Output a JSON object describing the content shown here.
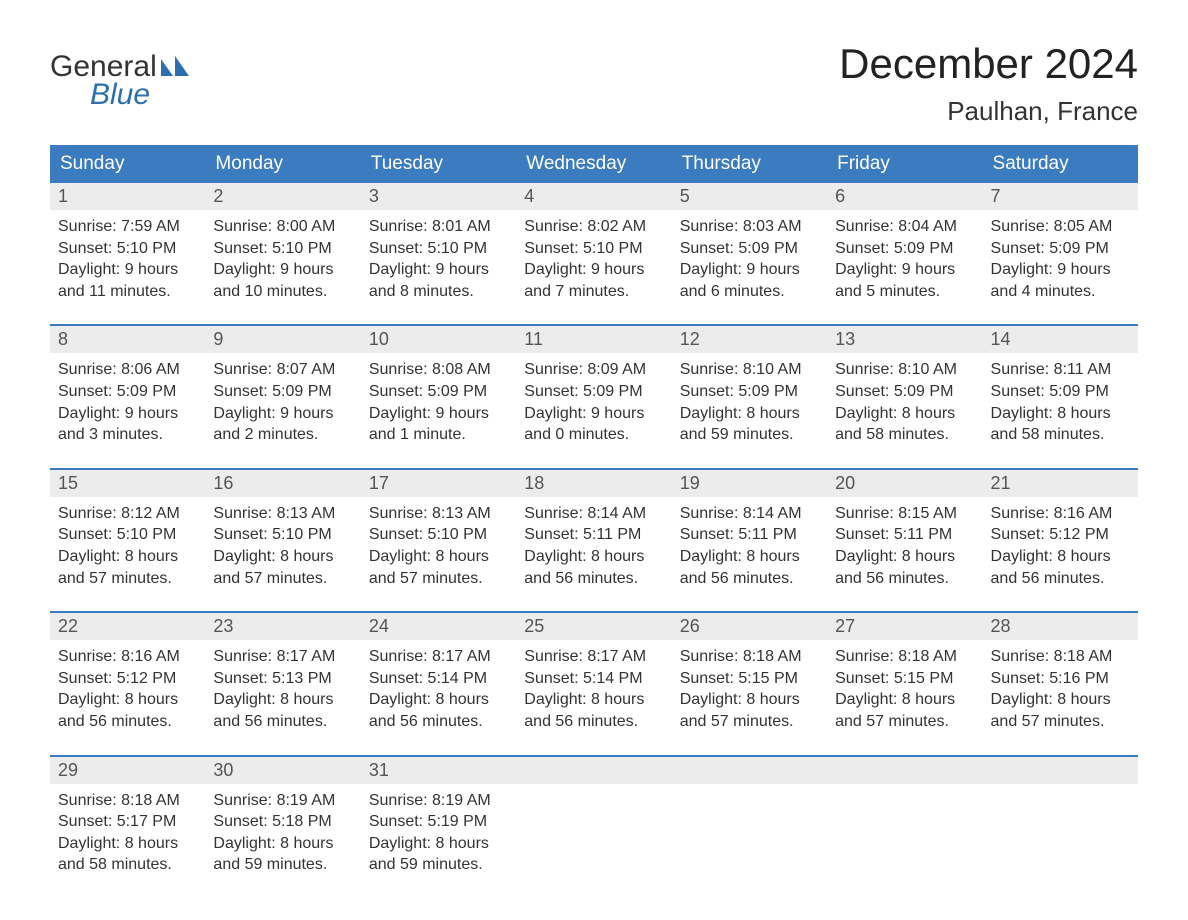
{
  "brand": {
    "top": "General",
    "bottom": "Blue",
    "textColor": "#333333",
    "blueColor": "#2b6fb0"
  },
  "title": "December 2024",
  "location": "Paulhan, France",
  "colors": {
    "headerBg": "#3b7bbf",
    "headerText": "#ffffff",
    "weekBorder": "#3b7bbf",
    "dayNumBg": "#ececec",
    "dayNumText": "#555555",
    "bodyText": "#333333",
    "pageBg": "#ffffff"
  },
  "typography": {
    "titleFontSize": 42,
    "locationFontSize": 26,
    "dayHeaderFontSize": 19,
    "dayNumFontSize": 18,
    "cellFontSize": 16,
    "logoFontSize": 30
  },
  "dayHeaders": [
    "Sunday",
    "Monday",
    "Tuesday",
    "Wednesday",
    "Thursday",
    "Friday",
    "Saturday"
  ],
  "weeks": [
    [
      {
        "num": "1",
        "sunrise": "Sunrise: 7:59 AM",
        "sunset": "Sunset: 5:10 PM",
        "d1": "Daylight: 9 hours",
        "d2": "and 11 minutes."
      },
      {
        "num": "2",
        "sunrise": "Sunrise: 8:00 AM",
        "sunset": "Sunset: 5:10 PM",
        "d1": "Daylight: 9 hours",
        "d2": "and 10 minutes."
      },
      {
        "num": "3",
        "sunrise": "Sunrise: 8:01 AM",
        "sunset": "Sunset: 5:10 PM",
        "d1": "Daylight: 9 hours",
        "d2": "and 8 minutes."
      },
      {
        "num": "4",
        "sunrise": "Sunrise: 8:02 AM",
        "sunset": "Sunset: 5:10 PM",
        "d1": "Daylight: 9 hours",
        "d2": "and 7 minutes."
      },
      {
        "num": "5",
        "sunrise": "Sunrise: 8:03 AM",
        "sunset": "Sunset: 5:09 PM",
        "d1": "Daylight: 9 hours",
        "d2": "and 6 minutes."
      },
      {
        "num": "6",
        "sunrise": "Sunrise: 8:04 AM",
        "sunset": "Sunset: 5:09 PM",
        "d1": "Daylight: 9 hours",
        "d2": "and 5 minutes."
      },
      {
        "num": "7",
        "sunrise": "Sunrise: 8:05 AM",
        "sunset": "Sunset: 5:09 PM",
        "d1": "Daylight: 9 hours",
        "d2": "and 4 minutes."
      }
    ],
    [
      {
        "num": "8",
        "sunrise": "Sunrise: 8:06 AM",
        "sunset": "Sunset: 5:09 PM",
        "d1": "Daylight: 9 hours",
        "d2": "and 3 minutes."
      },
      {
        "num": "9",
        "sunrise": "Sunrise: 8:07 AM",
        "sunset": "Sunset: 5:09 PM",
        "d1": "Daylight: 9 hours",
        "d2": "and 2 minutes."
      },
      {
        "num": "10",
        "sunrise": "Sunrise: 8:08 AM",
        "sunset": "Sunset: 5:09 PM",
        "d1": "Daylight: 9 hours",
        "d2": "and 1 minute."
      },
      {
        "num": "11",
        "sunrise": "Sunrise: 8:09 AM",
        "sunset": "Sunset: 5:09 PM",
        "d1": "Daylight: 9 hours",
        "d2": "and 0 minutes."
      },
      {
        "num": "12",
        "sunrise": "Sunrise: 8:10 AM",
        "sunset": "Sunset: 5:09 PM",
        "d1": "Daylight: 8 hours",
        "d2": "and 59 minutes."
      },
      {
        "num": "13",
        "sunrise": "Sunrise: 8:10 AM",
        "sunset": "Sunset: 5:09 PM",
        "d1": "Daylight: 8 hours",
        "d2": "and 58 minutes."
      },
      {
        "num": "14",
        "sunrise": "Sunrise: 8:11 AM",
        "sunset": "Sunset: 5:09 PM",
        "d1": "Daylight: 8 hours",
        "d2": "and 58 minutes."
      }
    ],
    [
      {
        "num": "15",
        "sunrise": "Sunrise: 8:12 AM",
        "sunset": "Sunset: 5:10 PM",
        "d1": "Daylight: 8 hours",
        "d2": "and 57 minutes."
      },
      {
        "num": "16",
        "sunrise": "Sunrise: 8:13 AM",
        "sunset": "Sunset: 5:10 PM",
        "d1": "Daylight: 8 hours",
        "d2": "and 57 minutes."
      },
      {
        "num": "17",
        "sunrise": "Sunrise: 8:13 AM",
        "sunset": "Sunset: 5:10 PM",
        "d1": "Daylight: 8 hours",
        "d2": "and 57 minutes."
      },
      {
        "num": "18",
        "sunrise": "Sunrise: 8:14 AM",
        "sunset": "Sunset: 5:11 PM",
        "d1": "Daylight: 8 hours",
        "d2": "and 56 minutes."
      },
      {
        "num": "19",
        "sunrise": "Sunrise: 8:14 AM",
        "sunset": "Sunset: 5:11 PM",
        "d1": "Daylight: 8 hours",
        "d2": "and 56 minutes."
      },
      {
        "num": "20",
        "sunrise": "Sunrise: 8:15 AM",
        "sunset": "Sunset: 5:11 PM",
        "d1": "Daylight: 8 hours",
        "d2": "and 56 minutes."
      },
      {
        "num": "21",
        "sunrise": "Sunrise: 8:16 AM",
        "sunset": "Sunset: 5:12 PM",
        "d1": "Daylight: 8 hours",
        "d2": "and 56 minutes."
      }
    ],
    [
      {
        "num": "22",
        "sunrise": "Sunrise: 8:16 AM",
        "sunset": "Sunset: 5:12 PM",
        "d1": "Daylight: 8 hours",
        "d2": "and 56 minutes."
      },
      {
        "num": "23",
        "sunrise": "Sunrise: 8:17 AM",
        "sunset": "Sunset: 5:13 PM",
        "d1": "Daylight: 8 hours",
        "d2": "and 56 minutes."
      },
      {
        "num": "24",
        "sunrise": "Sunrise: 8:17 AM",
        "sunset": "Sunset: 5:14 PM",
        "d1": "Daylight: 8 hours",
        "d2": "and 56 minutes."
      },
      {
        "num": "25",
        "sunrise": "Sunrise: 8:17 AM",
        "sunset": "Sunset: 5:14 PM",
        "d1": "Daylight: 8 hours",
        "d2": "and 56 minutes."
      },
      {
        "num": "26",
        "sunrise": "Sunrise: 8:18 AM",
        "sunset": "Sunset: 5:15 PM",
        "d1": "Daylight: 8 hours",
        "d2": "and 57 minutes."
      },
      {
        "num": "27",
        "sunrise": "Sunrise: 8:18 AM",
        "sunset": "Sunset: 5:15 PM",
        "d1": "Daylight: 8 hours",
        "d2": "and 57 minutes."
      },
      {
        "num": "28",
        "sunrise": "Sunrise: 8:18 AM",
        "sunset": "Sunset: 5:16 PM",
        "d1": "Daylight: 8 hours",
        "d2": "and 57 minutes."
      }
    ],
    [
      {
        "num": "29",
        "sunrise": "Sunrise: 8:18 AM",
        "sunset": "Sunset: 5:17 PM",
        "d1": "Daylight: 8 hours",
        "d2": "and 58 minutes."
      },
      {
        "num": "30",
        "sunrise": "Sunrise: 8:19 AM",
        "sunset": "Sunset: 5:18 PM",
        "d1": "Daylight: 8 hours",
        "d2": "and 59 minutes."
      },
      {
        "num": "31",
        "sunrise": "Sunrise: 8:19 AM",
        "sunset": "Sunset: 5:19 PM",
        "d1": "Daylight: 8 hours",
        "d2": "and 59 minutes."
      },
      {
        "num": "",
        "sunrise": "",
        "sunset": "",
        "d1": "",
        "d2": ""
      },
      {
        "num": "",
        "sunrise": "",
        "sunset": "",
        "d1": "",
        "d2": ""
      },
      {
        "num": "",
        "sunrise": "",
        "sunset": "",
        "d1": "",
        "d2": ""
      },
      {
        "num": "",
        "sunrise": "",
        "sunset": "",
        "d1": "",
        "d2": ""
      }
    ]
  ]
}
